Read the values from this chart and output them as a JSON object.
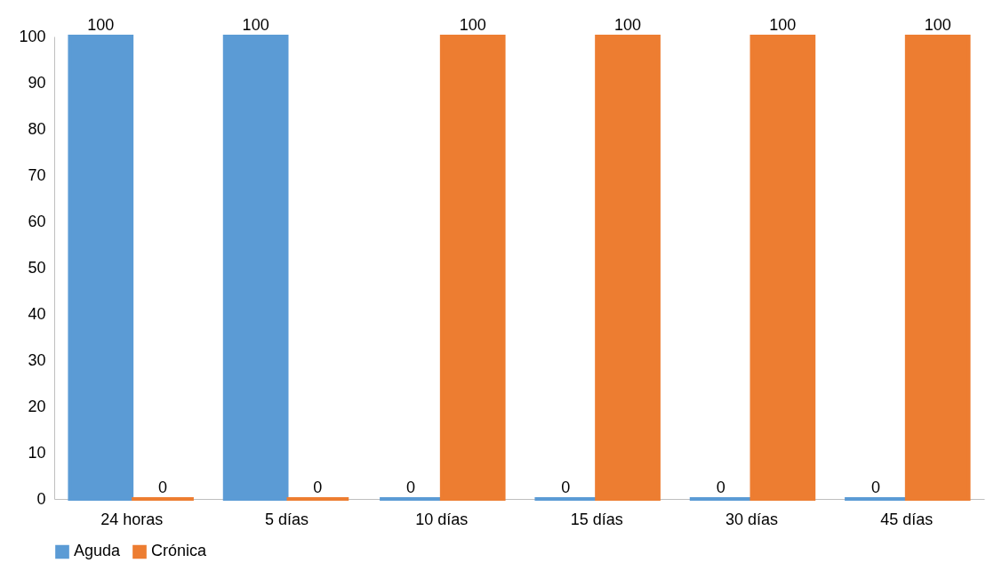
{
  "chart_data": {
    "type": "bar",
    "categories": [
      "24 horas",
      "5 días",
      "10 días",
      "15 días",
      "30 días",
      "45 días"
    ],
    "series": [
      {
        "name": "Aguda",
        "color": "#5b9bd5",
        "values": [
          100,
          100,
          0,
          0,
          0,
          0
        ]
      },
      {
        "name": "Crónica",
        "color": "#ed7d31",
        "values": [
          0,
          0,
          100,
          100,
          100,
          100
        ]
      }
    ],
    "ylim": [
      0,
      100
    ],
    "yticks": [
      0,
      10,
      20,
      30,
      40,
      50,
      60,
      70,
      80,
      90,
      100
    ],
    "grid": false,
    "legend": "bottom",
    "data_labels": true
  }
}
